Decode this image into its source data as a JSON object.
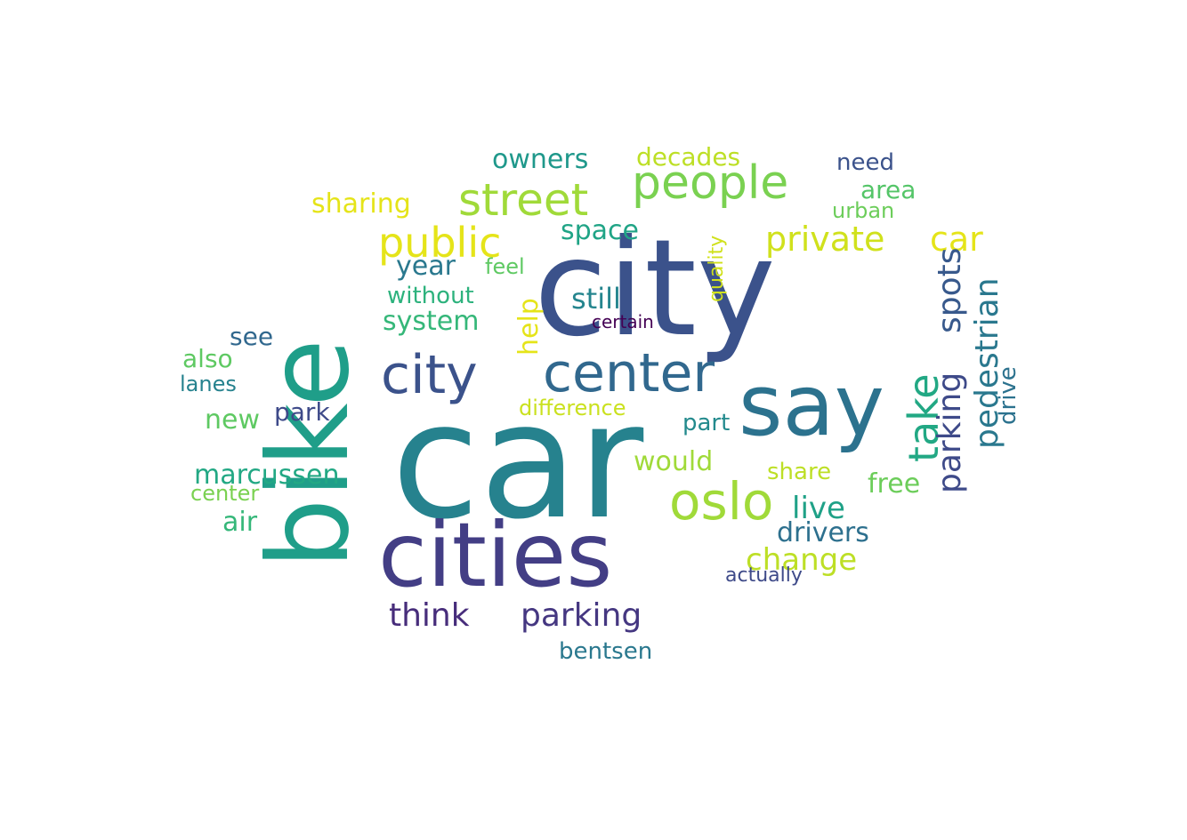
{
  "word_cloud": {
    "palette": [
      "#440154",
      "#3b528b",
      "#21918c",
      "#5ec962",
      "#fde725"
    ],
    "words": [
      {
        "text": "car",
        "color": "#26828e"
      },
      {
        "text": "city",
        "color": "#3b528b"
      },
      {
        "text": "bike",
        "color": "#1f9e89"
      },
      {
        "text": "cities",
        "color": "#433e85"
      },
      {
        "text": "say",
        "color": "#2c728e"
      },
      {
        "text": "center",
        "color": "#31688e"
      },
      {
        "text": "city",
        "color": "#3b528b"
      },
      {
        "text": "oslo",
        "color": "#a0da39"
      },
      {
        "text": "people",
        "color": "#7ad151"
      },
      {
        "text": "street",
        "color": "#a0da39"
      },
      {
        "text": "public",
        "color": "#e5e419"
      },
      {
        "text": "take",
        "color": "#22a884"
      },
      {
        "text": "private",
        "color": "#d0e11c"
      },
      {
        "text": "car",
        "color": "#e5e419"
      },
      {
        "text": "parking",
        "color": "#453781"
      },
      {
        "text": "think",
        "color": "#472d7b"
      },
      {
        "text": "parking",
        "color": "#3e4a89"
      },
      {
        "text": "spots",
        "color": "#38598c"
      },
      {
        "text": "pedestrian",
        "color": "#2a788e"
      },
      {
        "text": "marcussen",
        "color": "#22a884"
      },
      {
        "text": "new",
        "color": "#5ec962"
      },
      {
        "text": "year",
        "color": "#2a788e"
      },
      {
        "text": "still",
        "color": "#25858e"
      },
      {
        "text": "system",
        "color": "#35b779"
      },
      {
        "text": "sharing",
        "color": "#e5e419"
      },
      {
        "text": "owners",
        "color": "#1f988b"
      },
      {
        "text": "decades",
        "color": "#bddf26"
      },
      {
        "text": "area",
        "color": "#54c568"
      },
      {
        "text": "need",
        "color": "#3b528b"
      },
      {
        "text": "urban",
        "color": "#6ccd5a"
      },
      {
        "text": "space",
        "color": "#20a486"
      },
      {
        "text": "help",
        "color": "#e5e419"
      },
      {
        "text": "without",
        "color": "#2db27d"
      },
      {
        "text": "also",
        "color": "#5ec962"
      },
      {
        "text": "see",
        "color": "#31688e"
      },
      {
        "text": "park",
        "color": "#3e4a89"
      },
      {
        "text": "feel",
        "color": "#5ec962"
      },
      {
        "text": "lanes",
        "color": "#26828e"
      },
      {
        "text": "difference",
        "color": "#cae11f"
      },
      {
        "text": "quality",
        "color": "#d0e11c"
      },
      {
        "text": "would",
        "color": "#a0da39"
      },
      {
        "text": "part",
        "color": "#238a8d"
      },
      {
        "text": "share",
        "color": "#bddf26"
      },
      {
        "text": "live",
        "color": "#1fa187"
      },
      {
        "text": "free",
        "color": "#6ccd5a"
      },
      {
        "text": "drive",
        "color": "#2c728e"
      },
      {
        "text": "change",
        "color": "#bddf26"
      },
      {
        "text": "drivers",
        "color": "#2d708e"
      },
      {
        "text": "air",
        "color": "#35b779"
      },
      {
        "text": "center",
        "color": "#7ad151"
      },
      {
        "text": "bentsen",
        "color": "#2a788e"
      },
      {
        "text": "actually",
        "color": "#3e4a89"
      },
      {
        "text": "certain",
        "color": "#440154"
      }
    ]
  }
}
